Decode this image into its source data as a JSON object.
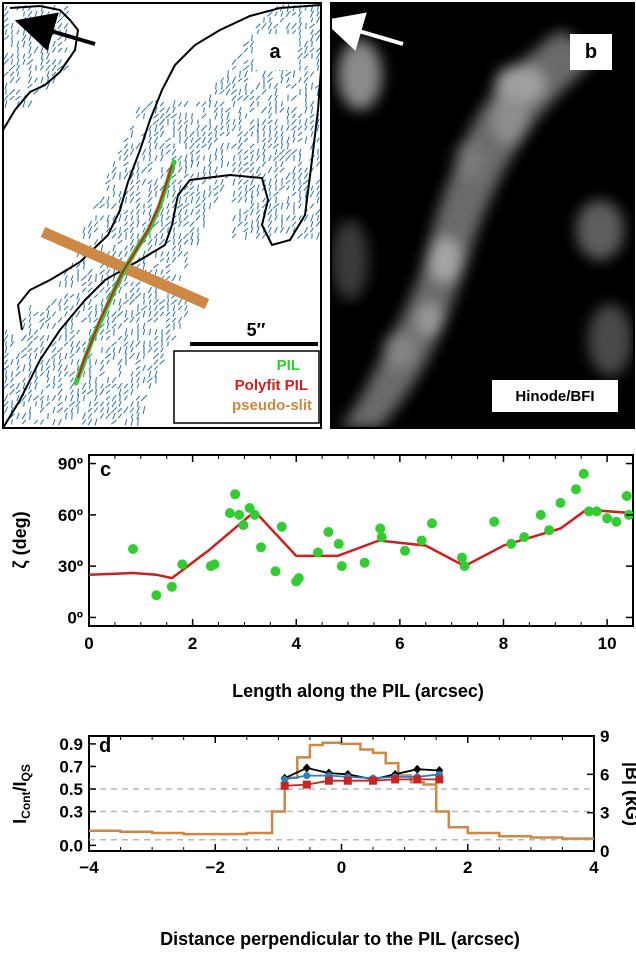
{
  "panel_a": {
    "letter": "a",
    "scale_bar_label": "5′′",
    "legend": [
      {
        "label": "PIL",
        "color": "#33cc33"
      },
      {
        "label": "Polyfit PIL",
        "color": "#cc1f1f"
      },
      {
        "label": "pseudo-slit",
        "color": "#cc8844"
      }
    ],
    "vector_color": "#2a6fb0",
    "arrow_color": "#000000"
  },
  "panel_b": {
    "letter": "b",
    "image_label": "Hinode/BFI",
    "arrow_color": "#ffffff"
  },
  "chart_data": [
    {
      "panel": "c",
      "type": "scatter",
      "xlabel": "Length along the PIL (arcsec)",
      "ylabel": "ζ (deg)",
      "xlim": [
        0,
        10.5
      ],
      "ylim": [
        -5,
        95
      ],
      "xticks": [
        0,
        2,
        4,
        6,
        8,
        10
      ],
      "yticks": [
        {
          "value": 0,
          "label": "0º"
        },
        {
          "value": 30,
          "label": "30º"
        },
        {
          "value": 60,
          "label": "60º"
        },
        {
          "value": 90,
          "label": "90º"
        }
      ],
      "series": [
        {
          "kind": "points",
          "color": "#33cc33",
          "x": [
            0.85,
            1.3,
            1.6,
            1.8,
            2.35,
            2.42,
            2.72,
            2.82,
            2.9,
            2.98,
            3.1,
            3.2,
            3.32,
            3.6,
            3.72,
            4.0,
            4.05,
            4.42,
            4.62,
            4.82,
            4.88,
            5.32,
            5.62,
            5.65,
            6.1,
            6.42,
            6.62,
            7.2,
            7.25,
            7.82,
            8.15,
            8.4,
            8.72,
            8.88,
            9.1,
            9.4,
            9.55,
            9.65,
            9.8,
            10.0,
            10.18,
            10.38,
            10.42
          ],
          "y": [
            40,
            13,
            18,
            31,
            30,
            31,
            61,
            72,
            60,
            54,
            64,
            60,
            41,
            27,
            53,
            21,
            23,
            38,
            50,
            43,
            30,
            32,
            52,
            47,
            39,
            45,
            55,
            35,
            30,
            56,
            43,
            47,
            60,
            51,
            67,
            75,
            84,
            62,
            62,
            58,
            56,
            71,
            60
          ]
        },
        {
          "kind": "line",
          "color": "#cc1f1f",
          "x": [
            0,
            0.85,
            1.3,
            1.6,
            2.3,
            3.2,
            4.0,
            4.8,
            5.6,
            6.5,
            7.25,
            8.0,
            9.1,
            9.6,
            10.5
          ],
          "y": [
            25,
            26,
            25,
            23,
            39,
            62,
            36,
            36,
            45,
            42,
            30,
            42,
            52,
            63,
            61
          ]
        }
      ]
    },
    {
      "panel": "d",
      "type": "line",
      "xlabel": "Distance perpendicular to the PIL (arcsec)",
      "ylabel_left": "ICont/IQS",
      "ylabel_left_main": "I",
      "ylabel_left_sub1": "Cont",
      "ylabel_left_mid": "/I",
      "ylabel_left_sub2": "QS",
      "ylabel_right": "|B| (kG)",
      "xlim": [
        -4,
        4
      ],
      "ylim_left": [
        -0.05,
        0.97
      ],
      "ylim_right": [
        0,
        9.0
      ],
      "xticks": [
        -4,
        -2,
        0,
        2,
        4
      ],
      "xtick_labels": [
        "−4",
        "−2",
        "0",
        "2",
        "4"
      ],
      "yticks_left": [
        0.0,
        0.3,
        0.5,
        0.7,
        0.9
      ],
      "yticks_left_labels": [
        "0.0",
        "0.3",
        "0.5",
        "0.7",
        "0.9"
      ],
      "yticks_right": [
        0,
        3,
        6,
        9
      ],
      "dashed_levels_left": [
        0.05,
        0.3,
        0.5
      ],
      "intensity_steps": {
        "color": "#cc8844",
        "edges": [
          -4.0,
          -3.5,
          -3.0,
          -2.5,
          -2.0,
          -1.5,
          -1.1,
          -0.9,
          -0.7,
          -0.5,
          -0.3,
          0.0,
          0.3,
          0.5,
          0.7,
          0.9,
          1.1,
          1.3,
          1.5,
          1.7,
          2.0,
          2.5,
          3.0,
          3.5,
          4.0
        ],
        "values": [
          0.13,
          0.12,
          0.11,
          0.1,
          0.1,
          0.11,
          0.3,
          0.6,
          0.78,
          0.89,
          0.91,
          0.9,
          0.85,
          0.82,
          0.73,
          0.62,
          0.56,
          0.54,
          0.3,
          0.16,
          0.11,
          0.08,
          0.07,
          0.06
        ]
      },
      "field_series": [
        {
          "color": "#000000",
          "marker": "diamond",
          "x": [
            -0.9,
            -0.55,
            -0.2,
            0.1,
            0.5,
            0.85,
            1.2,
            1.55
          ],
          "y": [
            5.7,
            6.5,
            6.1,
            6.0,
            5.6,
            6.0,
            6.4,
            6.3
          ]
        },
        {
          "color": "#2a7fc0",
          "marker": "circle",
          "x": [
            -0.9,
            -0.55,
            -0.2,
            0.1,
            0.5,
            0.85,
            1.2,
            1.55
          ],
          "y": [
            5.6,
            5.9,
            5.9,
            5.8,
            5.7,
            5.8,
            5.8,
            6.0
          ]
        },
        {
          "color": "#cc2222",
          "marker": "square",
          "x": [
            -0.9,
            -0.55,
            -0.2,
            0.1,
            0.5,
            0.85,
            1.2,
            1.55
          ],
          "y": [
            5.1,
            5.2,
            5.5,
            5.5,
            5.5,
            5.6,
            5.6,
            5.6
          ]
        }
      ]
    }
  ]
}
